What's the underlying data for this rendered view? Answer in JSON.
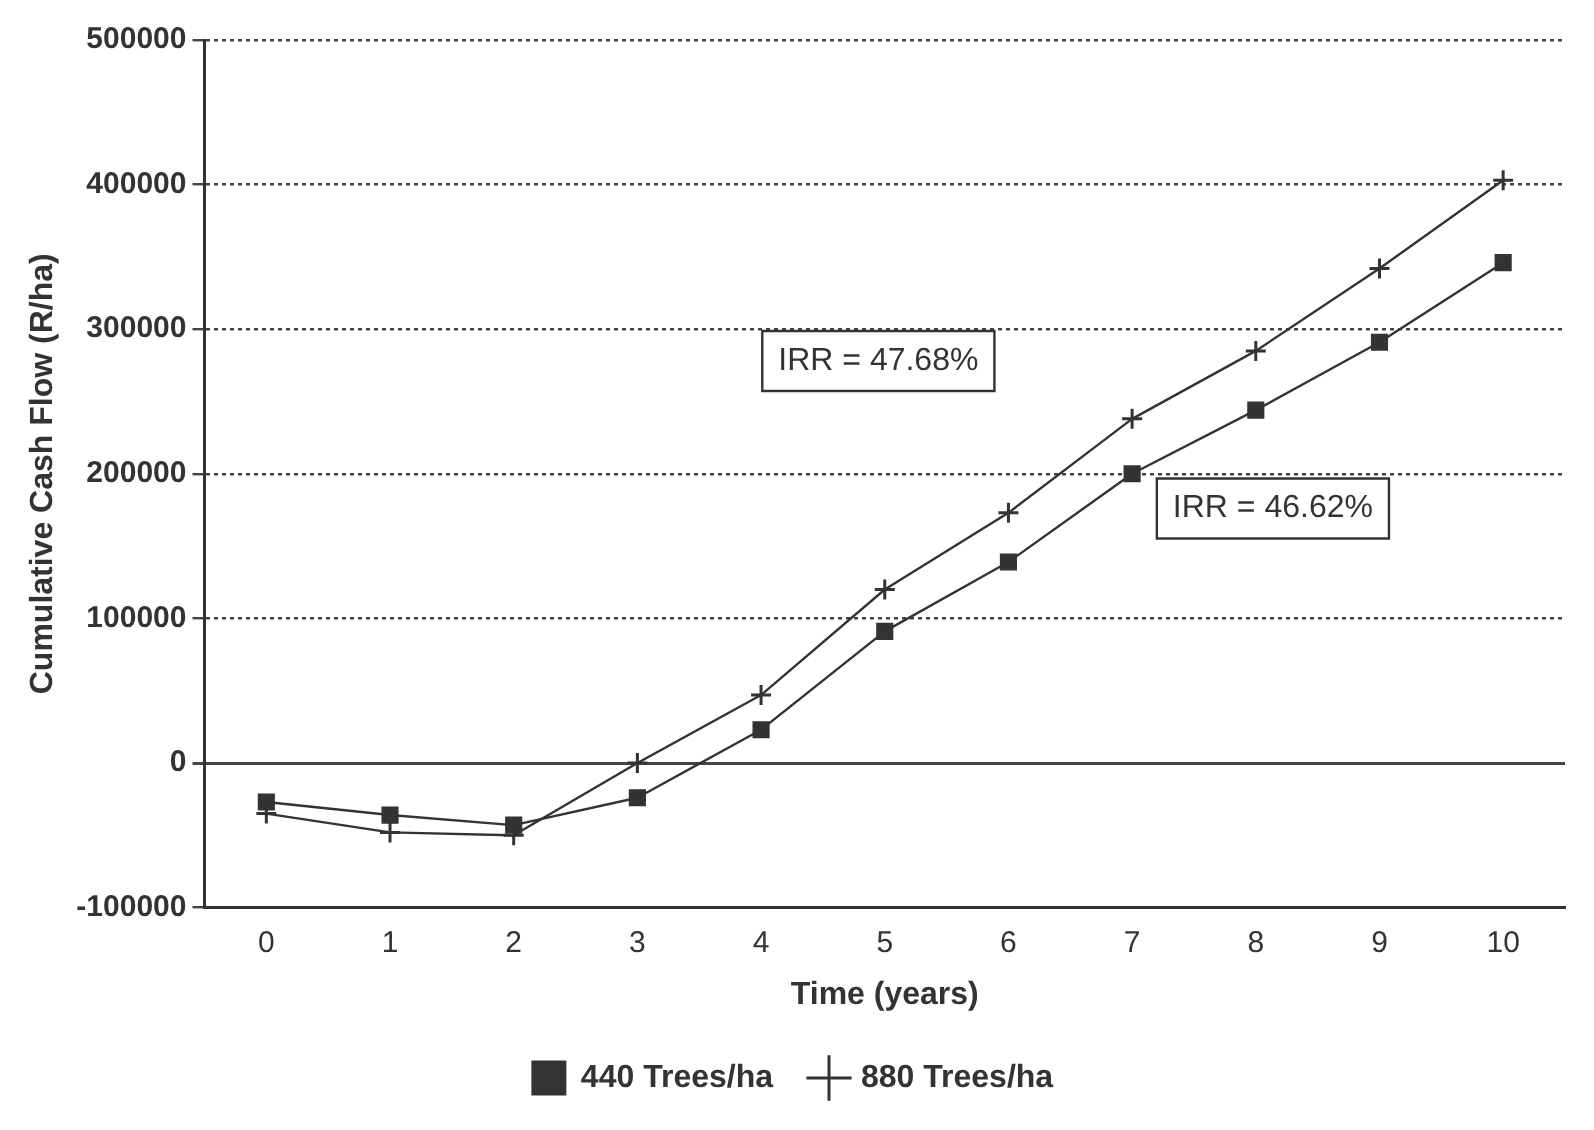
{
  "chart_data": {
    "type": "line",
    "xlabel": "Time (years)",
    "ylabel": "Cumulative Cash Flow (R/ha)",
    "categories": [
      "0",
      "1",
      "2",
      "3",
      "4",
      "5",
      "6",
      "7",
      "8",
      "9",
      "10"
    ],
    "series": [
      {
        "name": "440 Trees/ha",
        "color": "#333333",
        "marker": "square",
        "values": [
          -27000,
          -36000,
          -43000,
          -24000,
          23000,
          91000,
          139000,
          200000,
          244000,
          291000,
          346000
        ]
      },
      {
        "name": "880 Trees/ha",
        "color": "#333333",
        "marker": "cross",
        "values": [
          -35000,
          -48000,
          -50000,
          0,
          47000,
          120000,
          173000,
          238000,
          285000,
          342000,
          403000
        ]
      }
    ],
    "ylim": [
      -100000,
      500000
    ],
    "yticks": [
      -100000,
      0,
      100000,
      200000,
      300000,
      400000,
      500000
    ],
    "grid": "y",
    "legend": "bottom",
    "line_style": "solid",
    "annotations": [
      "IRR = 47.68%",
      "IRR = 46.62%"
    ]
  }
}
